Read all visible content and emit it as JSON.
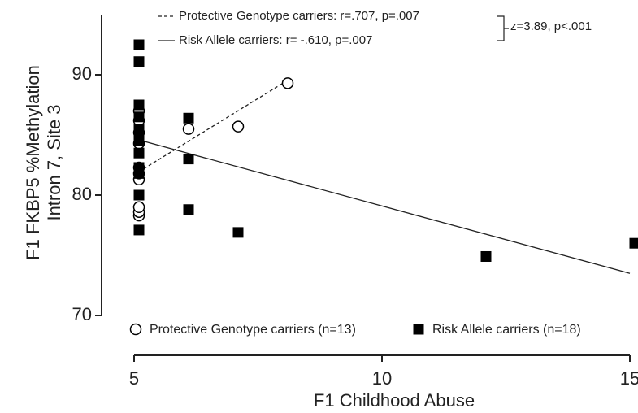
{
  "chart_data": {
    "type": "scatter",
    "y_label": [
      "F1 FKBP5 %Methylation",
      "Intron 7, Site 3"
    ],
    "x_label": "F1 Childhood Abuse",
    "xlim": [
      5,
      15
    ],
    "xticks": [
      5,
      10,
      15
    ],
    "ylim": [
      70,
      95
    ],
    "yticks": [
      70,
      80,
      90
    ],
    "series": [
      {
        "name": "Protective Genotype carriers (n=13)",
        "marker": "open-circle",
        "color": "#000000",
        "x": [
          5,
          5,
          5,
          5,
          5,
          5,
          5,
          5,
          5,
          5,
          6,
          7,
          8
        ],
        "values": [
          78.3,
          78.6,
          79.0,
          81.3,
          81.8,
          82.3,
          84.3,
          85.2,
          86.2,
          87.0,
          85.5,
          85.7,
          89.3
        ]
      },
      {
        "name": "Risk Allele carriers (n=18)",
        "marker": "square",
        "color": "#000000",
        "x": [
          5,
          5,
          5,
          5,
          5,
          5,
          5,
          5,
          5,
          5,
          5,
          5,
          6,
          6,
          6,
          7,
          12,
          15
        ],
        "values": [
          92.5,
          91.1,
          87.5,
          86.5,
          85.5,
          85.0,
          84.5,
          83.5,
          82.3,
          81.8,
          80.0,
          77.1,
          86.4,
          83.0,
          78.8,
          76.9,
          74.9,
          76.0
        ]
      }
    ],
    "fit_lines": [
      {
        "name": "Protective Genotype carriers: r=.707, p=.007",
        "style": "dashed",
        "x": [
          5,
          8
        ],
        "values": [
          81.7,
          89.3
        ]
      },
      {
        "name": "Risk Allele carriers: r= -.610, p=.007",
        "style": "solid",
        "x": [
          5,
          15
        ],
        "values": [
          84.7,
          73.5
        ]
      }
    ],
    "comparison": "z=3.89, p<.001"
  }
}
